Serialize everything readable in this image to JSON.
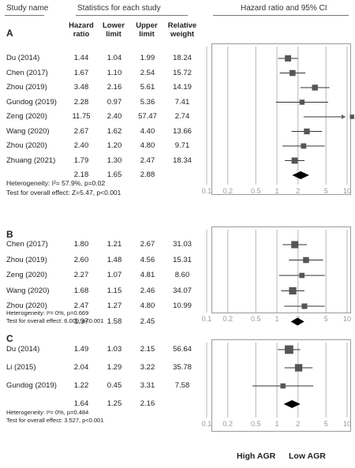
{
  "header": {
    "study_name": "Study name",
    "stats_title": "Statistics for each study",
    "ci_title": "Hazard ratio and 95% CI"
  },
  "columns": {
    "hr": [
      "Hazard",
      "ratio"
    ],
    "lower": [
      "Lower",
      "limit"
    ],
    "upper": [
      "Upper",
      "limit"
    ],
    "weight": [
      "Relative",
      "weight"
    ]
  },
  "colors": {
    "marker": "#555555",
    "line": "#333333",
    "grid": "#b5b5b5",
    "arrow": "#666666"
  },
  "footer": {
    "left": "High AGR",
    "right": "Low AGR"
  },
  "chart_data": [
    {
      "type": "forest",
      "panel": "A",
      "x_scale": "log",
      "xlim": [
        0.1,
        10
      ],
      "ticks": [
        "0.1",
        "0.2",
        "0.5",
        "1",
        "2",
        "5",
        "10"
      ],
      "studies": [
        {
          "name": "Du (2014)",
          "hr": "1.44",
          "lower": "1.04",
          "upper": "1.99",
          "weight": "18.24"
        },
        {
          "name": "Chen (2017)",
          "hr": "1.67",
          "lower": "1.10",
          "upper": "2.54",
          "weight": "15.72"
        },
        {
          "name": "Zhou (2019)",
          "hr": "3.48",
          "lower": "2.16",
          "upper": "5.61",
          "weight": "14.19"
        },
        {
          "name": "Gundog (2019)",
          "hr": "2.28",
          "lower": "0.97",
          "upper": "5.36",
          "weight": "7.41"
        },
        {
          "name": "Zeng (2020)",
          "hr": "11.75",
          "lower": "2.40",
          "upper": "57.47",
          "weight": "2.74"
        },
        {
          "name": "Wang (2020)",
          "hr": "2.67",
          "lower": "1.62",
          "upper": "4.40",
          "weight": "13.66"
        },
        {
          "name": "Zhou (2020)",
          "hr": "2.40",
          "lower": "1.20",
          "upper": "4.80",
          "weight": "9.71"
        },
        {
          "name": "Zhuang (2021)",
          "hr": "1.79",
          "lower": "1.30",
          "upper": "2.47",
          "weight": "18.34"
        }
      ],
      "pooled": {
        "hr": "2.18",
        "lower": "1.65",
        "upper": "2.88"
      },
      "heterogeneity": "Heterogeneity: I²= 57.9%, p=0.02",
      "overall": "Test for overall effect: Z=5.47, p<0.001"
    },
    {
      "type": "forest",
      "panel": "B",
      "x_scale": "log",
      "xlim": [
        0.1,
        10
      ],
      "ticks": [
        "0.1",
        "0.2",
        "0.5",
        "1",
        "2",
        "5",
        "10"
      ],
      "studies": [
        {
          "name": "Chen (2017)",
          "hr": "1.80",
          "lower": "1.21",
          "upper": "2.67",
          "weight": "31.03"
        },
        {
          "name": "Zhou (2019)",
          "hr": "2.60",
          "lower": "1.48",
          "upper": "4.56",
          "weight": "15.31"
        },
        {
          "name": "Zeng (2020)",
          "hr": "2.27",
          "lower": "1.07",
          "upper": "4.81",
          "weight": "8.60"
        },
        {
          "name": "Wang (2020)",
          "hr": "1.68",
          "lower": "1.15",
          "upper": "2.46",
          "weight": "34.07"
        },
        {
          "name": "Zhou (2020)",
          "hr": "2.47",
          "lower": "1.27",
          "upper": "4.80",
          "weight": "10.99"
        }
      ],
      "pooled": {
        "hr": "1.97",
        "lower": "1.58",
        "upper": "2.45"
      },
      "heterogeneity": "Heterogeneity: I²= 0%, p=0.669",
      "overall": "Test for overall effect: 6.009, p<0.001"
    },
    {
      "type": "forest",
      "panel": "C",
      "x_scale": "log",
      "xlim": [
        0.1,
        10
      ],
      "ticks": [
        "0.1",
        "0.2",
        "0.5",
        "1",
        "2",
        "5",
        "10"
      ],
      "studies": [
        {
          "name": "Du (2014)",
          "hr": "1.49",
          "lower": "1.03",
          "upper": "2.15",
          "weight": "56.64"
        },
        {
          "name": "Li (2015)",
          "hr": "2.04",
          "lower": "1.29",
          "upper": "3.22",
          "weight": "35.78"
        },
        {
          "name": "Gundog (2019)",
          "hr": "1.22",
          "lower": "0.45",
          "upper": "3.31",
          "weight": "7.58"
        }
      ],
      "pooled": {
        "hr": "1.64",
        "lower": "1.25",
        "upper": "2.16"
      },
      "heterogeneity": "Heterogeneity: I²= 0%, p=0.484",
      "overall": "Test for overall effect: 3.527, p<0.001"
    }
  ]
}
